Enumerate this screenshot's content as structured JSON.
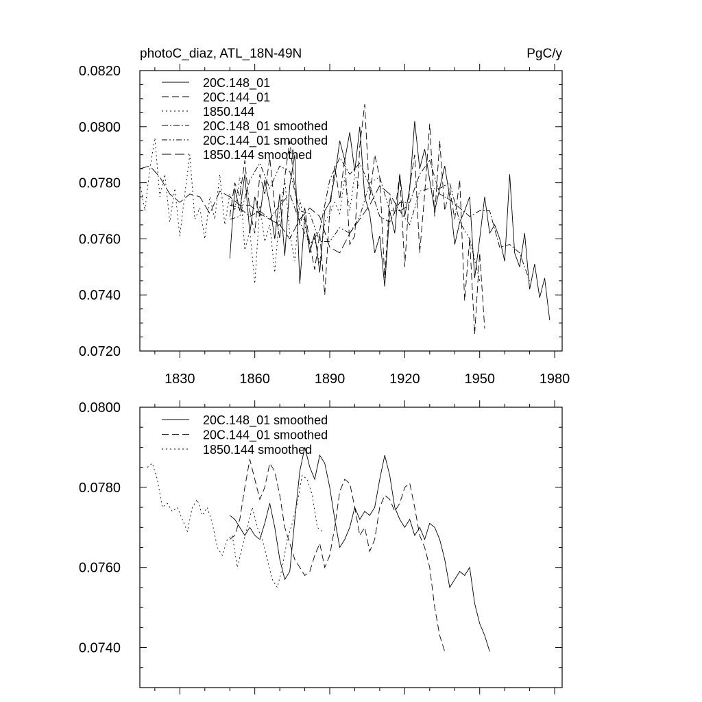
{
  "chart_data": [
    {
      "type": "line",
      "title_left": "photoC_diaz, ATL_18N-49N",
      "title_right": "PgC/y",
      "xlabel": "",
      "ylabel": "",
      "xlim": [
        1814,
        1983
      ],
      "ylim": [
        0.072,
        0.082
      ],
      "xticks": [
        1830,
        1860,
        1890,
        1920,
        1950,
        1980
      ],
      "xtick_labels": [
        "1830",
        "1860",
        "1890",
        "1920",
        "1950",
        "1980"
      ],
      "yticks": [
        0.072,
        0.074,
        0.076,
        0.078,
        0.08,
        0.082
      ],
      "ytick_labels": [
        "0.0720",
        "0.0740",
        "0.0760",
        "0.0780",
        "0.0800",
        "0.0820"
      ],
      "legend": [
        "20C.148_01",
        "20C.144_01",
        "1850.144",
        "20C.148_01 smoothed",
        "20C.144_01 smoothed",
        "1850.144 smoothed"
      ],
      "series": [
        {
          "name": "20C.148_01",
          "style": "solid",
          "x0": 1850,
          "dx": 2,
          "values": [
            0.0753,
            0.0778,
            0.077,
            0.0783,
            0.0762,
            0.0775,
            0.0768,
            0.0781,
            0.0772,
            0.076,
            0.0776,
            0.0754,
            0.0779,
            0.079,
            0.0744,
            0.0768,
            0.0755,
            0.0762,
            0.0748,
            0.077,
            0.0773,
            0.0782,
            0.0795,
            0.0788,
            0.0798,
            0.0784,
            0.08,
            0.0775,
            0.0769,
            0.0755,
            0.0761,
            0.0743,
            0.077,
            0.0762,
            0.0783,
            0.0768,
            0.0778,
            0.0802,
            0.0785,
            0.0792,
            0.0781,
            0.077,
            0.0778,
            0.0786,
            0.0775,
            0.0758,
            0.0766,
            0.077,
            0.0775,
            0.0746,
            0.076,
            0.0775,
            0.0762,
            0.0765,
            0.076,
            0.0752,
            0.0783,
            0.0755,
            0.075,
            0.0762,
            0.0742,
            0.0751,
            0.0739,
            0.0746,
            0.0731
          ]
        },
        {
          "name": "20C.144_01",
          "style": "dashed",
          "x0": 1850,
          "dx": 2,
          "values": [
            0.0768,
            0.078,
            0.0775,
            0.0788,
            0.077,
            0.0762,
            0.0783,
            0.0776,
            0.0789,
            0.0771,
            0.076,
            0.0782,
            0.0795,
            0.0778,
            0.0765,
            0.0771,
            0.0758,
            0.0749,
            0.0762,
            0.074,
            0.077,
            0.0786,
            0.0774,
            0.0789,
            0.0758,
            0.0761,
            0.0793,
            0.0808,
            0.0774,
            0.079,
            0.0782,
            0.0746,
            0.0775,
            0.0769,
            0.0783,
            0.075,
            0.0779,
            0.079,
            0.0755,
            0.0776,
            0.0801,
            0.0768,
            0.0795,
            0.077,
            0.0778,
            0.0767,
            0.0781,
            0.0738,
            0.076,
            0.0726,
            0.0755,
            0.0728
          ]
        },
        {
          "name": "1850.144",
          "style": "dotted",
          "x0": 1814,
          "dx": 2,
          "values": [
            0.078,
            0.077,
            0.0785,
            0.0796,
            0.0775,
            0.0783,
            0.0766,
            0.0778,
            0.0761,
            0.0776,
            0.079,
            0.0767,
            0.0771,
            0.076,
            0.0775,
            0.0767,
            0.0783,
            0.0765,
            0.0776,
            0.077,
            0.0782,
            0.0756,
            0.0763,
            0.0744,
            0.0772,
            0.0759,
            0.0765,
            0.0748,
            0.077,
            0.0781,
            0.0762,
            0.0752,
            0.0774,
            0.0765,
            0.0758,
            0.076,
            0.0751,
            0.0766,
            0.0769,
            0.0773,
            0.0769,
            0.0782,
            0.077,
            0.0783,
            0.0778
          ]
        },
        {
          "name": "20C.148_01 smoothed",
          "style": "dashdot",
          "x0": 1850,
          "dx": 4,
          "values": [
            0.0772,
            0.0771,
            0.0768,
            0.077,
            0.0767,
            0.0772,
            0.0776,
            0.0766,
            0.0758,
            0.0763,
            0.0781,
            0.0789,
            0.0783,
            0.0787,
            0.0779,
            0.0768,
            0.0766,
            0.0773,
            0.0773,
            0.0783,
            0.0788,
            0.0776,
            0.0774,
            0.0771,
            0.0768,
            0.077,
            0.077,
            0.0757,
            0.0758,
            0.0755,
            0.0745
          ]
        },
        {
          "name": "20C.144_01 smoothed",
          "style": "dashdotdot",
          "x0": 1850,
          "dx": 4,
          "values": [
            0.0767,
            0.0768,
            0.0781,
            0.0787,
            0.0778,
            0.0786,
            0.0784,
            0.077,
            0.0769,
            0.0759,
            0.0759,
            0.0764,
            0.0762,
            0.0768,
            0.078,
            0.0782,
            0.077,
            0.077,
            0.0765,
            0.0777,
            0.0778,
            0.0778,
            0.078,
            0.0766,
            0.076,
            0.0745
          ]
        },
        {
          "name": "1850.144 smoothed",
          "style": "longdash",
          "x0": 1814,
          "dx": 4,
          "values": [
            0.0785,
            0.0786,
            0.0782,
            0.0776,
            0.0773,
            0.0776,
            0.0775,
            0.0769,
            0.0777,
            0.0775,
            0.0772,
            0.0772,
            0.0769,
            0.0767,
            0.0765,
            0.076,
            0.0767,
            0.0771,
            0.0768,
            0.0757,
            0.0755,
            0.0762,
            0.0767,
            0.0772,
            0.0779,
            0.0776,
            0.077,
            0.0772
          ]
        }
      ]
    },
    {
      "type": "line",
      "xlim": [
        1814,
        1983
      ],
      "ylim": [
        0.073,
        0.08
      ],
      "xticks": [
        1830,
        1860,
        1890,
        1920,
        1950,
        1980
      ],
      "yticks": [
        0.074,
        0.076,
        0.078,
        0.08
      ],
      "ytick_labels": [
        "0.0740",
        "0.0760",
        "0.0780",
        "0.0800"
      ],
      "legend": [
        "20C.148_01 smoothed",
        "20C.144_01 smoothed",
        "1850.144 smoothed"
      ],
      "series": [
        {
          "name": "20C.148_01 smoothed",
          "style": "solid",
          "x0": 1850,
          "dx": 2,
          "values": [
            0.0773,
            0.0772,
            0.077,
            0.0768,
            0.077,
            0.0768,
            0.0767,
            0.0771,
            0.0776,
            0.077,
            0.0762,
            0.0757,
            0.0759,
            0.0772,
            0.0784,
            0.079,
            0.0785,
            0.0782,
            0.0788,
            0.0786,
            0.078,
            0.0772,
            0.0765,
            0.0767,
            0.077,
            0.0775,
            0.0772,
            0.0774,
            0.0773,
            0.0775,
            0.0782,
            0.0788,
            0.0783,
            0.0775,
            0.0772,
            0.077,
            0.0772,
            0.0768,
            0.077,
            0.0767,
            0.0771,
            0.077,
            0.0767,
            0.0762,
            0.0755,
            0.0757,
            0.0759,
            0.0758,
            0.076,
            0.0751,
            0.0746,
            0.0743,
            0.0739
          ]
        },
        {
          "name": "20C.144_01 smoothed",
          "style": "dashed",
          "x0": 1850,
          "dx": 2,
          "values": [
            0.0767,
            0.0768,
            0.0772,
            0.078,
            0.0787,
            0.0782,
            0.0777,
            0.078,
            0.0786,
            0.0784,
            0.0778,
            0.077,
            0.0766,
            0.0762,
            0.076,
            0.0758,
            0.0759,
            0.0763,
            0.0766,
            0.076,
            0.0763,
            0.077,
            0.0779,
            0.0782,
            0.0781,
            0.0775,
            0.0768,
            0.077,
            0.0764,
            0.0767,
            0.0775,
            0.0778,
            0.0777,
            0.0774,
            0.0776,
            0.078,
            0.0781,
            0.0775,
            0.0768,
            0.0765,
            0.076,
            0.075,
            0.0743,
            0.0739
          ]
        },
        {
          "name": "1850.144 smoothed",
          "style": "dotted",
          "x0": 1817,
          "dx": 2,
          "values": [
            0.0785,
            0.0786,
            0.0782,
            0.0775,
            0.0776,
            0.0774,
            0.0775,
            0.0772,
            0.0769,
            0.0775,
            0.0777,
            0.0773,
            0.0775,
            0.0771,
            0.0765,
            0.0763,
            0.0767,
            0.0768,
            0.076,
            0.0765,
            0.077,
            0.0775,
            0.077,
            0.0767,
            0.0762,
            0.0757,
            0.0755,
            0.076,
            0.0767,
            0.0771,
            0.0776,
            0.0783,
            0.0782,
            0.0778,
            0.077,
            0.0769
          ]
        }
      ]
    }
  ]
}
